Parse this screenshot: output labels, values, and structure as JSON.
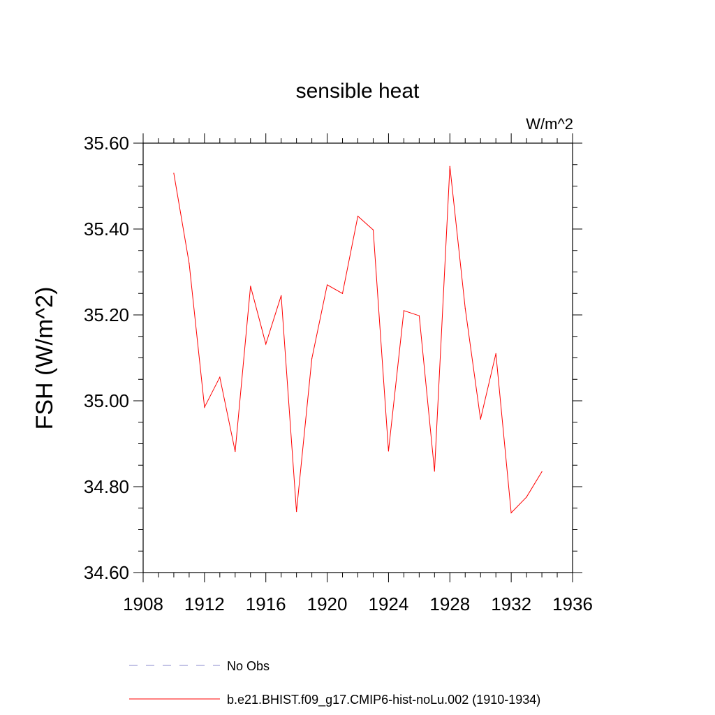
{
  "chart_data": {
    "type": "line",
    "title": "sensible heat",
    "units_label": "W/m^2",
    "ylabel": "FSH  (W/m^2)",
    "xlabel": "",
    "xlim": [
      1908,
      1936
    ],
    "ylim": [
      34.6,
      35.6
    ],
    "x_ticks": [
      1908,
      1912,
      1916,
      1920,
      1924,
      1928,
      1932,
      1936
    ],
    "y_ticks": [
      "34.60",
      "34.80",
      "35.00",
      "35.20",
      "35.40",
      "35.60"
    ],
    "grid": false,
    "legend_position": "bottom",
    "series": [
      {
        "name": "b.e21.BHIST.f09_g17.CMIP6-hist-noLu.002 (1910-1934)",
        "color": "#ff0000",
        "style": "solid",
        "x": [
          1910,
          1911,
          1912,
          1913,
          1914,
          1915,
          1916,
          1917,
          1918,
          1919,
          1920,
          1921,
          1922,
          1923,
          1924,
          1925,
          1926,
          1927,
          1928,
          1929,
          1930,
          1931,
          1932,
          1933,
          1934
        ],
        "y": [
          35.53,
          35.32,
          34.985,
          35.055,
          34.882,
          35.267,
          35.132,
          35.245,
          34.742,
          35.098,
          35.27,
          35.25,
          35.43,
          35.398,
          34.883,
          35.21,
          35.198,
          34.836,
          35.546,
          35.215,
          34.957,
          35.11,
          34.739,
          34.776,
          34.835
        ]
      }
    ],
    "legend": [
      {
        "name": "No Obs",
        "color": "#8888cc",
        "style": "dashed"
      },
      {
        "name": "b.e21.BHIST.f09_g17.CMIP6-hist-noLu.002 (1910-1934)",
        "color": "#ff0000",
        "style": "solid"
      }
    ]
  }
}
